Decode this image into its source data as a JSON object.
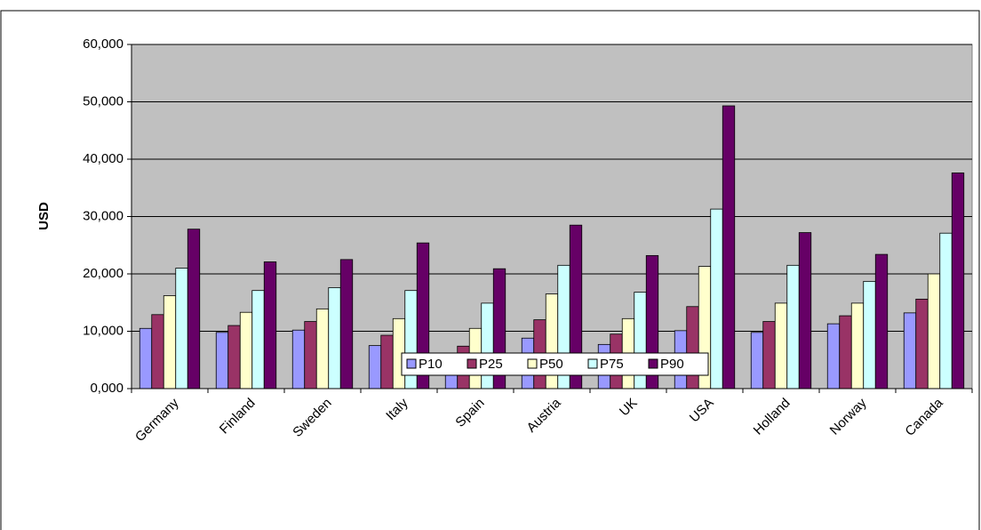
{
  "chart_data": {
    "type": "bar",
    "y_label": "USD",
    "categories": [
      "Germany",
      "Finland",
      "Sweden",
      "Italy",
      "Spain",
      "Austria",
      "UK",
      "USA",
      "Holland",
      "Norway",
      "Canada"
    ],
    "series": [
      {
        "name": "P10",
        "color": "#9999ff",
        "values": [
          10500,
          9800,
          10200,
          7500,
          5500,
          8800,
          7700,
          10100,
          9800,
          11300,
          13200
        ]
      },
      {
        "name": "P25",
        "color": "#993366",
        "values": [
          12900,
          11000,
          11700,
          9300,
          7400,
          12000,
          9500,
          14300,
          11700,
          12700,
          15600
        ]
      },
      {
        "name": "P50",
        "color": "#ffffcc",
        "values": [
          16200,
          13300,
          13900,
          12200,
          10500,
          16500,
          12200,
          21300,
          14900,
          14900,
          20000
        ]
      },
      {
        "name": "P75",
        "color": "#ccffff",
        "values": [
          21000,
          17100,
          17600,
          17100,
          14900,
          21500,
          16800,
          31300,
          21500,
          18700,
          27100
        ]
      },
      {
        "name": "P90",
        "color": "#660066",
        "values": [
          27800,
          22100,
          22500,
          25400,
          20900,
          28500,
          23200,
          49300,
          27200,
          23400,
          37600
        ]
      }
    ],
    "ylim": [
      0,
      60000
    ],
    "yticks": [
      {
        "value": 0,
        "label": "0,000"
      },
      {
        "value": 10000,
        "label": "10,000"
      },
      {
        "value": 20000,
        "label": "20,000"
      },
      {
        "value": 30000,
        "label": "30,000"
      },
      {
        "value": 40000,
        "label": "40,000"
      },
      {
        "value": 50000,
        "label": "50,000"
      },
      {
        "value": 60000,
        "label": "60,000"
      }
    ],
    "grid": true,
    "plot_background": "#c0c0c0",
    "legend": "bottom"
  }
}
